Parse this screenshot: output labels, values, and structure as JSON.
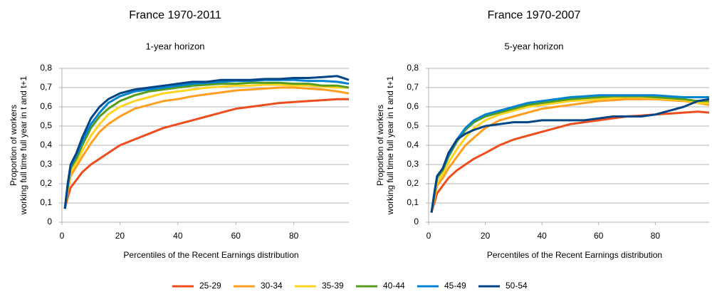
{
  "chart_data": [
    {
      "type": "line",
      "title": "France 1970-2011",
      "subtitle": "1-year horizon",
      "xlabel": "Percentiles of the Recent Earnings distribution",
      "ylabel": [
        "Proportion of workers",
        "working full time full year in t and t+1"
      ],
      "x": [
        1,
        2,
        3,
        5,
        7,
        10,
        13,
        16,
        20,
        25,
        30,
        35,
        40,
        45,
        50,
        55,
        60,
        65,
        70,
        75,
        80,
        85,
        90,
        95,
        99
      ],
      "xlim": [
        0,
        99
      ],
      "xticks": [
        0,
        20,
        40,
        60,
        80
      ],
      "ylim": [
        0,
        0.8
      ],
      "yticks": [
        0,
        {
          "value": 0.1,
          "label": "0,1"
        },
        {
          "value": 0.2,
          "label": "0,2"
        },
        {
          "value": 0.3,
          "label": "0,3"
        },
        {
          "value": 0.4,
          "label": "0,4"
        },
        {
          "value": 0.5,
          "label": "0,5"
        },
        {
          "value": 0.6,
          "label": "0,6"
        },
        {
          "value": 0.7,
          "label": "0,7"
        },
        {
          "value": 0.8,
          "label": "0,8"
        }
      ],
      "grid": true,
      "legend": "bottom",
      "series": [
        {
          "name": "25-29",
          "color": "#ee4d1e",
          "values": [
            0.07,
            0.13,
            0.18,
            0.22,
            0.26,
            0.3,
            0.33,
            0.36,
            0.4,
            0.43,
            0.46,
            0.49,
            0.51,
            0.53,
            0.55,
            0.57,
            0.59,
            0.6,
            0.61,
            0.62,
            0.625,
            0.63,
            0.635,
            0.64,
            0.64
          ]
        },
        {
          "name": "30-34",
          "color": "#ff9e1f",
          "values": [
            0.07,
            0.16,
            0.24,
            0.29,
            0.34,
            0.41,
            0.47,
            0.51,
            0.55,
            0.59,
            0.61,
            0.63,
            0.64,
            0.655,
            0.665,
            0.675,
            0.685,
            0.69,
            0.695,
            0.7,
            0.7,
            0.695,
            0.69,
            0.68,
            0.67
          ]
        },
        {
          "name": "35-39",
          "color": "#ffd320",
          "values": [
            0.07,
            0.17,
            0.26,
            0.31,
            0.37,
            0.45,
            0.51,
            0.56,
            0.6,
            0.63,
            0.65,
            0.67,
            0.68,
            0.69,
            0.7,
            0.705,
            0.71,
            0.71,
            0.715,
            0.715,
            0.71,
            0.71,
            0.705,
            0.7,
            0.7
          ]
        },
        {
          "name": "40-44",
          "color": "#579d1c",
          "values": [
            0.07,
            0.18,
            0.28,
            0.33,
            0.4,
            0.49,
            0.55,
            0.59,
            0.63,
            0.66,
            0.68,
            0.69,
            0.7,
            0.71,
            0.715,
            0.72,
            0.72,
            0.725,
            0.725,
            0.725,
            0.72,
            0.72,
            0.71,
            0.71,
            0.7
          ]
        },
        {
          "name": "45-49",
          "color": "#0084d1",
          "values": [
            0.07,
            0.19,
            0.29,
            0.35,
            0.42,
            0.51,
            0.57,
            0.62,
            0.655,
            0.68,
            0.69,
            0.7,
            0.71,
            0.72,
            0.725,
            0.73,
            0.735,
            0.735,
            0.74,
            0.74,
            0.74,
            0.735,
            0.735,
            0.73,
            0.72
          ]
        },
        {
          "name": "50-54",
          "color": "#004586",
          "values": [
            0.07,
            0.2,
            0.3,
            0.36,
            0.44,
            0.54,
            0.6,
            0.64,
            0.67,
            0.69,
            0.7,
            0.71,
            0.72,
            0.73,
            0.73,
            0.74,
            0.74,
            0.74,
            0.745,
            0.745,
            0.75,
            0.75,
            0.755,
            0.76,
            0.74
          ]
        }
      ]
    },
    {
      "type": "line",
      "title": "France 1970-2007",
      "subtitle": "5-year horizon",
      "xlabel": "Percentiles of the Recent Earnings distribution",
      "ylabel": [
        "Proportion of workers",
        "working full time full year in t and t+1"
      ],
      "x": [
        1,
        2,
        3,
        5,
        7,
        10,
        13,
        16,
        20,
        25,
        30,
        35,
        40,
        45,
        50,
        55,
        60,
        65,
        70,
        75,
        80,
        85,
        90,
        95,
        99
      ],
      "xlim": [
        0,
        99
      ],
      "xticks": [
        0,
        20,
        40,
        60,
        80
      ],
      "ylim": [
        0,
        0.8
      ],
      "yticks": [
        0,
        {
          "value": 0.1,
          "label": "0,1"
        },
        {
          "value": 0.2,
          "label": "0,2"
        },
        {
          "value": 0.3,
          "label": "0,3"
        },
        {
          "value": 0.4,
          "label": "0,4"
        },
        {
          "value": 0.5,
          "label": "0,5"
        },
        {
          "value": 0.6,
          "label": "0,6"
        },
        {
          "value": 0.7,
          "label": "0,7"
        },
        {
          "value": 0.8,
          "label": "0,8"
        }
      ],
      "grid": true,
      "series": [
        {
          "name": "25-29",
          "color": "#ee4d1e",
          "values": [
            0.05,
            0.1,
            0.15,
            0.19,
            0.23,
            0.27,
            0.3,
            0.33,
            0.36,
            0.4,
            0.43,
            0.45,
            0.47,
            0.49,
            0.51,
            0.52,
            0.53,
            0.54,
            0.55,
            0.555,
            0.56,
            0.565,
            0.57,
            0.575,
            0.57
          ]
        },
        {
          "name": "30-34",
          "color": "#ff9e1f",
          "values": [
            0.05,
            0.12,
            0.19,
            0.23,
            0.28,
            0.34,
            0.4,
            0.44,
            0.49,
            0.53,
            0.55,
            0.57,
            0.59,
            0.6,
            0.61,
            0.62,
            0.63,
            0.635,
            0.64,
            0.64,
            0.64,
            0.635,
            0.63,
            0.62,
            0.61
          ]
        },
        {
          "name": "35-39",
          "color": "#ffd320",
          "values": [
            0.05,
            0.13,
            0.21,
            0.25,
            0.31,
            0.38,
            0.44,
            0.49,
            0.53,
            0.56,
            0.58,
            0.6,
            0.61,
            0.62,
            0.63,
            0.635,
            0.64,
            0.645,
            0.65,
            0.65,
            0.645,
            0.64,
            0.635,
            0.62,
            0.62
          ]
        },
        {
          "name": "40-44",
          "color": "#579d1c",
          "values": [
            0.05,
            0.14,
            0.23,
            0.27,
            0.34,
            0.42,
            0.48,
            0.52,
            0.55,
            0.57,
            0.59,
            0.61,
            0.62,
            0.63,
            0.64,
            0.645,
            0.65,
            0.655,
            0.655,
            0.655,
            0.65,
            0.645,
            0.64,
            0.63,
            0.63
          ]
        },
        {
          "name": "45-49",
          "color": "#0084d1",
          "values": [
            0.05,
            0.15,
            0.24,
            0.28,
            0.35,
            0.43,
            0.49,
            0.53,
            0.56,
            0.58,
            0.6,
            0.62,
            0.63,
            0.64,
            0.65,
            0.655,
            0.66,
            0.66,
            0.66,
            0.66,
            0.66,
            0.655,
            0.65,
            0.65,
            0.65
          ]
        },
        {
          "name": "50-54",
          "color": "#004586",
          "values": [
            0.05,
            0.15,
            0.24,
            0.28,
            0.36,
            0.43,
            0.46,
            0.48,
            0.5,
            0.51,
            0.52,
            0.52,
            0.53,
            0.53,
            0.53,
            0.53,
            0.54,
            0.55,
            0.55,
            0.55,
            0.56,
            0.58,
            0.6,
            0.63,
            0.64
          ]
        }
      ]
    }
  ]
}
